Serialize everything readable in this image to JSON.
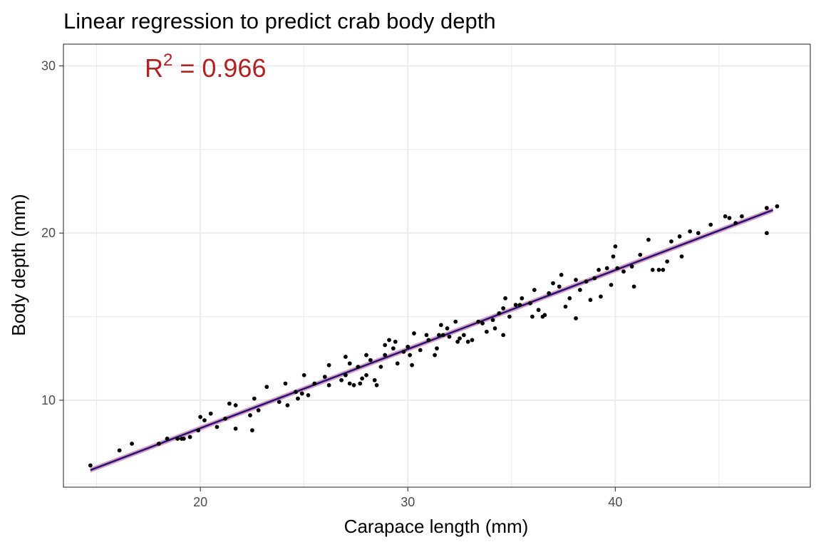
{
  "chart_data": {
    "type": "scatter",
    "title": "Linear regression to predict crab body depth",
    "xlabel": "Carapace length (mm)",
    "ylabel": "Body depth (mm)",
    "xlim": [
      13.4,
      49.4
    ],
    "ylim": [
      4.8,
      31.3
    ],
    "x_ticks": [
      20,
      30,
      40
    ],
    "y_ticks": [
      10,
      20,
      30
    ],
    "x_ticks_minor": [
      15,
      25,
      35,
      45
    ],
    "y_ticks_minor": [
      5,
      15,
      25
    ],
    "grid": true,
    "annotation": {
      "base": "R",
      "sup": "2",
      "rest": " = 0.966",
      "color": "#b22222"
    },
    "colors": {
      "points": "#000000",
      "fit_line": "#1f1478",
      "ribbon": "#d48ab0"
    },
    "fit": {
      "x": [
        14.7,
        47.6
      ],
      "y": [
        5.82,
        21.38
      ]
    },
    "points": [
      [
        14.7,
        6.1
      ],
      [
        16.1,
        7.0
      ],
      [
        16.7,
        7.4
      ],
      [
        18.0,
        7.4
      ],
      [
        18.4,
        7.7
      ],
      [
        18.9,
        7.7
      ],
      [
        19.1,
        7.7
      ],
      [
        19.2,
        7.7
      ],
      [
        19.5,
        7.8
      ],
      [
        19.9,
        8.2
      ],
      [
        20.0,
        9.0
      ],
      [
        20.2,
        8.8
      ],
      [
        20.5,
        9.2
      ],
      [
        20.8,
        8.4
      ],
      [
        21.2,
        8.9
      ],
      [
        21.4,
        9.8
      ],
      [
        21.7,
        9.7
      ],
      [
        21.7,
        8.3
      ],
      [
        22.4,
        9.1
      ],
      [
        22.6,
        10.1
      ],
      [
        22.8,
        9.4
      ],
      [
        23.2,
        10.8
      ],
      [
        22.5,
        8.2
      ],
      [
        23.8,
        9.9
      ],
      [
        24.1,
        11.0
      ],
      [
        24.2,
        9.7
      ],
      [
        24.6,
        10.5
      ],
      [
        24.7,
        10.1
      ],
      [
        24.9,
        10.4
      ],
      [
        25.0,
        11.5
      ],
      [
        25.2,
        10.3
      ],
      [
        25.5,
        11.0
      ],
      [
        26.0,
        11.4
      ],
      [
        26.2,
        10.9
      ],
      [
        26.2,
        12.1
      ],
      [
        26.8,
        11.2
      ],
      [
        27.0,
        12.6
      ],
      [
        27.0,
        11.5
      ],
      [
        27.2,
        12.2
      ],
      [
        27.2,
        11.0
      ],
      [
        27.4,
        10.9
      ],
      [
        27.6,
        12.0
      ],
      [
        27.7,
        11.0
      ],
      [
        27.8,
        11.3
      ],
      [
        28.0,
        11.5
      ],
      [
        28.0,
        12.7
      ],
      [
        28.2,
        12.4
      ],
      [
        28.4,
        11.2
      ],
      [
        28.5,
        10.9
      ],
      [
        28.7,
        12.0
      ],
      [
        28.9,
        13.3
      ],
      [
        28.9,
        12.7
      ],
      [
        29.1,
        13.6
      ],
      [
        29.3,
        13.1
      ],
      [
        29.4,
        13.5
      ],
      [
        29.5,
        12.2
      ],
      [
        29.8,
        12.9
      ],
      [
        30.1,
        12.7
      ],
      [
        30.2,
        12.1
      ],
      [
        30.3,
        14.0
      ],
      [
        30.0,
        13.2
      ],
      [
        30.6,
        13.0
      ],
      [
        30.9,
        13.9
      ],
      [
        31.0,
        13.6
      ],
      [
        31.3,
        12.7
      ],
      [
        31.4,
        13.1
      ],
      [
        31.5,
        13.9
      ],
      [
        31.6,
        14.5
      ],
      [
        31.7,
        13.9
      ],
      [
        31.9,
        14.3
      ],
      [
        32.0,
        13.8
      ],
      [
        32.3,
        14.7
      ],
      [
        32.4,
        13.5
      ],
      [
        32.5,
        13.7
      ],
      [
        32.7,
        13.9
      ],
      [
        32.9,
        13.5
      ],
      [
        33.1,
        13.6
      ],
      [
        33.4,
        14.7
      ],
      [
        33.6,
        14.6
      ],
      [
        33.8,
        14.1
      ],
      [
        34.1,
        14.8
      ],
      [
        34.2,
        14.3
      ],
      [
        34.4,
        15.2
      ],
      [
        34.6,
        15.5
      ],
      [
        34.6,
        13.9
      ],
      [
        34.7,
        16.1
      ],
      [
        34.9,
        15.0
      ],
      [
        35.2,
        15.7
      ],
      [
        35.4,
        15.7
      ],
      [
        35.5,
        16.1
      ],
      [
        35.9,
        15.8
      ],
      [
        36.0,
        15.0
      ],
      [
        36.1,
        16.6
      ],
      [
        36.3,
        15.4
      ],
      [
        36.5,
        15.0
      ],
      [
        36.6,
        15.1
      ],
      [
        36.8,
        16.4
      ],
      [
        37.0,
        17.0
      ],
      [
        37.3,
        16.8
      ],
      [
        37.4,
        17.5
      ],
      [
        37.6,
        15.6
      ],
      [
        37.8,
        16.1
      ],
      [
        38.1,
        17.2
      ],
      [
        38.1,
        14.9
      ],
      [
        38.3,
        16.6
      ],
      [
        38.6,
        17.1
      ],
      [
        38.8,
        16.0
      ],
      [
        39.0,
        17.3
      ],
      [
        39.2,
        17.8
      ],
      [
        39.3,
        16.2
      ],
      [
        39.6,
        17.9
      ],
      [
        39.8,
        16.9
      ],
      [
        39.9,
        18.6
      ],
      [
        40.0,
        19.2
      ],
      [
        40.1,
        17.9
      ],
      [
        40.4,
        17.7
      ],
      [
        40.8,
        18.0
      ],
      [
        40.9,
        16.8
      ],
      [
        41.2,
        18.7
      ],
      [
        41.6,
        19.6
      ],
      [
        41.8,
        17.8
      ],
      [
        42.1,
        17.8
      ],
      [
        42.3,
        17.8
      ],
      [
        42.5,
        18.3
      ],
      [
        42.7,
        19.5
      ],
      [
        43.1,
        19.8
      ],
      [
        43.2,
        18.6
      ],
      [
        43.6,
        20.1
      ],
      [
        44.0,
        20.0
      ],
      [
        44.6,
        20.5
      ],
      [
        45.3,
        21.0
      ],
      [
        45.5,
        20.9
      ],
      [
        45.8,
        20.6
      ],
      [
        46.1,
        21.0
      ],
      [
        47.3,
        20.0
      ],
      [
        47.3,
        21.5
      ],
      [
        47.8,
        21.6
      ]
    ]
  }
}
